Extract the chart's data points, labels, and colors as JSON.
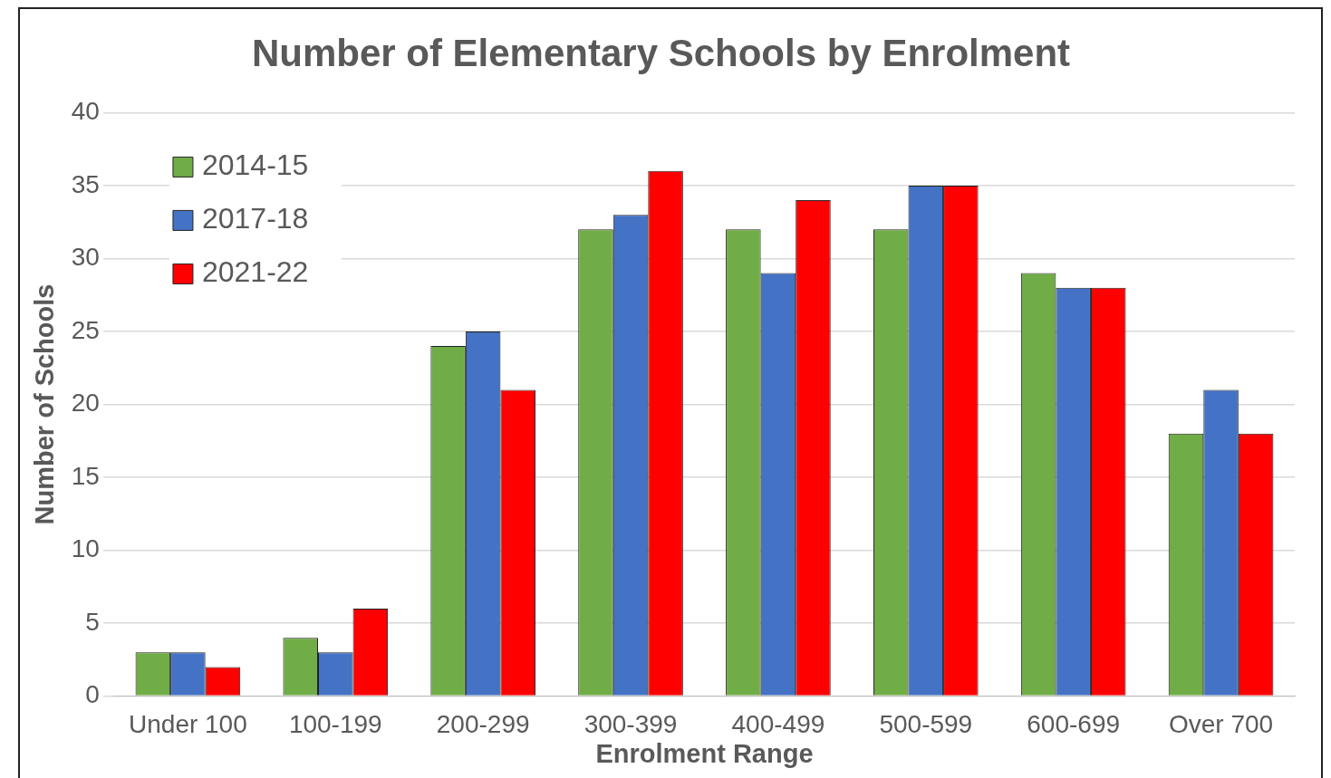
{
  "chart_data": {
    "type": "bar",
    "title": "Number of Elementary Schools by Enrolment",
    "xlabel": "Enrolment Range",
    "ylabel": "Number of Schools",
    "categories": [
      "Under 100",
      "100-199",
      "200-299",
      "300-399",
      "400-499",
      "500-599",
      "600-699",
      "Over 700"
    ],
    "series": [
      {
        "name": "2014-15",
        "color": "#70ad47",
        "values": [
          3,
          4,
          24,
          32,
          32,
          32,
          29,
          18
        ]
      },
      {
        "name": "2017-18",
        "color": "#4472c4",
        "values": [
          3,
          3,
          25,
          33,
          29,
          35,
          28,
          21
        ]
      },
      {
        "name": "2021-22",
        "color": "#ff0000",
        "values": [
          2,
          6,
          21,
          36,
          34,
          35,
          28,
          18
        ]
      }
    ],
    "ylim": [
      0,
      40
    ],
    "yticks": [
      0,
      5,
      10,
      15,
      20,
      25,
      30,
      35,
      40
    ],
    "grid": "y",
    "legend": "top left"
  }
}
